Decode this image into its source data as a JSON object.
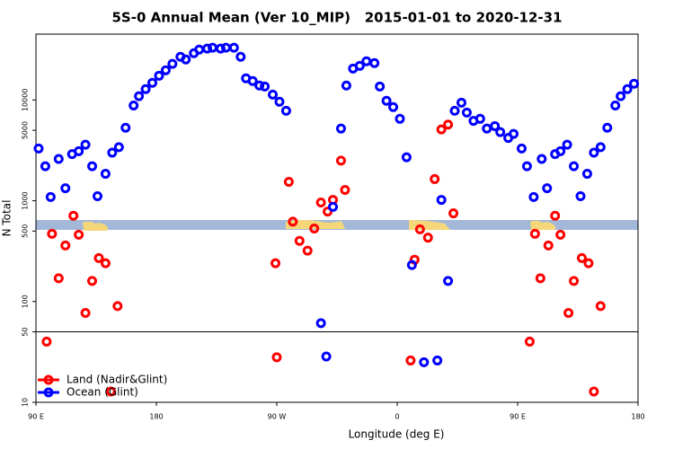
{
  "chart_data": {
    "type": "scatter",
    "title": "5S-0 Annual Mean (Ver 10_MIP)   2015-01-01 to 2020-12-31",
    "xlabel": "Longitude (deg E)",
    "ylabel": "N Total",
    "xlim": [
      90,
      540
    ],
    "xticks": [
      {
        "value": 90,
        "label": "90 E"
      },
      {
        "value": 180,
        "label": "180"
      },
      {
        "value": 270,
        "label": "90 W"
      },
      {
        "value": 360,
        "label": "0"
      },
      {
        "value": 450,
        "label": "90 E"
      },
      {
        "value": 540,
        "label": "180"
      }
    ],
    "ylim": [
      10,
      45000
    ],
    "log_y": true,
    "yticks": [
      10,
      50,
      100,
      500,
      1000,
      5000,
      10000
    ],
    "hline": 50,
    "legend": "bottom-left",
    "series": [
      {
        "name": "Land (Nadir&Glint)",
        "color": "#ff0000",
        "x": [
          98,
          102,
          107,
          112,
          118,
          122,
          127,
          132,
          137,
          142,
          146,
          151,
          269,
          270,
          279,
          282,
          287,
          293,
          298,
          303,
          308,
          312,
          318,
          321,
          370,
          373,
          377,
          383,
          388,
          393,
          398,
          402,
          459,
          463,
          467,
          473,
          478,
          482,
          488,
          492,
          498,
          503,
          507,
          512
        ],
        "values": [
          40,
          470,
          170,
          360,
          710,
          460,
          77,
          160,
          270,
          240,
          12.8,
          90,
          240,
          28,
          1540,
          620,
          400,
          320,
          530,
          960,
          780,
          1020,
          2500,
          1280,
          26,
          260,
          520,
          430,
          1640,
          5100,
          5700,
          750,
          40,
          470,
          170,
          360,
          710,
          460,
          77,
          160,
          270,
          240,
          12.8,
          90
        ]
      },
      {
        "name": "Ocean (Glint)",
        "color": "#0000ff",
        "x": [
          92,
          97,
          101,
          107,
          112,
          117,
          122,
          127,
          132,
          136,
          142,
          147,
          152,
          157,
          163,
          167,
          172,
          177,
          182,
          187,
          192,
          198,
          202,
          208,
          212,
          218,
          222,
          228,
          232,
          238,
          243,
          247,
          252,
          257,
          261,
          267,
          272,
          277,
          303,
          307,
          312,
          318,
          322,
          327,
          332,
          337,
          343,
          347,
          352,
          357,
          362,
          367,
          371,
          380,
          390,
          393,
          398,
          403,
          408,
          412,
          417,
          422,
          427,
          433,
          437,
          443,
          447,
          453,
          457,
          462,
          468,
          472,
          478,
          482,
          487,
          492,
          497,
          502,
          507,
          512,
          517,
          523,
          527,
          532,
          537
        ],
        "values": [
          3300,
          2200,
          1090,
          2600,
          1330,
          2900,
          3100,
          3600,
          2200,
          1110,
          1850,
          3000,
          3400,
          5300,
          8800,
          10900,
          12800,
          14800,
          17400,
          19700,
          22800,
          26800,
          25200,
          29100,
          31600,
          32300,
          33000,
          32300,
          33000,
          33000,
          26800,
          16400,
          15400,
          13900,
          13600,
          11300,
          9600,
          7800,
          61,
          28.5,
          870,
          5200,
          13900,
          20500,
          21800,
          24200,
          23200,
          13600,
          9800,
          8500,
          6500,
          2700,
          230,
          25,
          26,
          1020,
          160,
          7800,
          9400,
          7500,
          6200,
          6500,
          5200,
          5500,
          4800,
          4200,
          4600,
          3300,
          2200,
          1090,
          2600,
          1330,
          2900,
          3100,
          3600,
          2200,
          1110,
          1850,
          3000,
          3400,
          5300,
          8800,
          10900,
          12800,
          14500
        ]
      }
    ]
  }
}
